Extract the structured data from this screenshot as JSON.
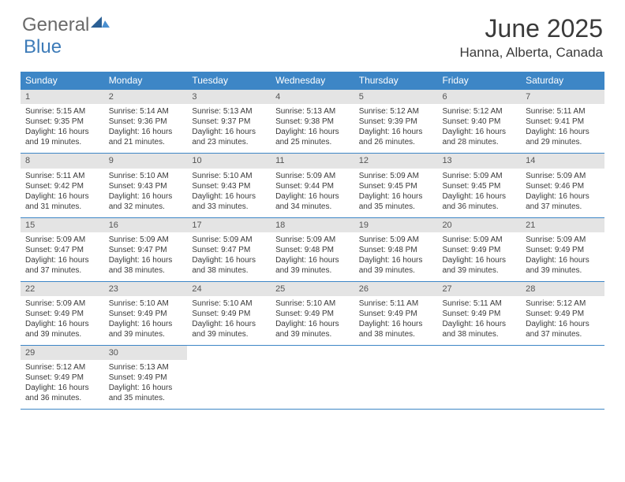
{
  "logo": {
    "general": "General",
    "blue": "Blue"
  },
  "title": "June 2025",
  "location": "Hanna, Alberta, Canada",
  "colors": {
    "header_bg": "#3d86c6",
    "header_text": "#ffffff",
    "daynum_bg": "#e4e4e4",
    "daynum_text": "#555555",
    "body_text": "#3a3a3a",
    "border": "#3d86c6",
    "logo_gray": "#6a6a6a",
    "logo_blue": "#3d7bb8"
  },
  "weekdays": [
    "Sunday",
    "Monday",
    "Tuesday",
    "Wednesday",
    "Thursday",
    "Friday",
    "Saturday"
  ],
  "weeks": [
    [
      {
        "n": "1",
        "sr": "5:15 AM",
        "ss": "9:35 PM",
        "dh": "16",
        "dm": "19"
      },
      {
        "n": "2",
        "sr": "5:14 AM",
        "ss": "9:36 PM",
        "dh": "16",
        "dm": "21"
      },
      {
        "n": "3",
        "sr": "5:13 AM",
        "ss": "9:37 PM",
        "dh": "16",
        "dm": "23"
      },
      {
        "n": "4",
        "sr": "5:13 AM",
        "ss": "9:38 PM",
        "dh": "16",
        "dm": "25"
      },
      {
        "n": "5",
        "sr": "5:12 AM",
        "ss": "9:39 PM",
        "dh": "16",
        "dm": "26"
      },
      {
        "n": "6",
        "sr": "5:12 AM",
        "ss": "9:40 PM",
        "dh": "16",
        "dm": "28"
      },
      {
        "n": "7",
        "sr": "5:11 AM",
        "ss": "9:41 PM",
        "dh": "16",
        "dm": "29"
      }
    ],
    [
      {
        "n": "8",
        "sr": "5:11 AM",
        "ss": "9:42 PM",
        "dh": "16",
        "dm": "31"
      },
      {
        "n": "9",
        "sr": "5:10 AM",
        "ss": "9:43 PM",
        "dh": "16",
        "dm": "32"
      },
      {
        "n": "10",
        "sr": "5:10 AM",
        "ss": "9:43 PM",
        "dh": "16",
        "dm": "33"
      },
      {
        "n": "11",
        "sr": "5:09 AM",
        "ss": "9:44 PM",
        "dh": "16",
        "dm": "34"
      },
      {
        "n": "12",
        "sr": "5:09 AM",
        "ss": "9:45 PM",
        "dh": "16",
        "dm": "35"
      },
      {
        "n": "13",
        "sr": "5:09 AM",
        "ss": "9:45 PM",
        "dh": "16",
        "dm": "36"
      },
      {
        "n": "14",
        "sr": "5:09 AM",
        "ss": "9:46 PM",
        "dh": "16",
        "dm": "37"
      }
    ],
    [
      {
        "n": "15",
        "sr": "5:09 AM",
        "ss": "9:47 PM",
        "dh": "16",
        "dm": "37"
      },
      {
        "n": "16",
        "sr": "5:09 AM",
        "ss": "9:47 PM",
        "dh": "16",
        "dm": "38"
      },
      {
        "n": "17",
        "sr": "5:09 AM",
        "ss": "9:47 PM",
        "dh": "16",
        "dm": "38"
      },
      {
        "n": "18",
        "sr": "5:09 AM",
        "ss": "9:48 PM",
        "dh": "16",
        "dm": "39"
      },
      {
        "n": "19",
        "sr": "5:09 AM",
        "ss": "9:48 PM",
        "dh": "16",
        "dm": "39"
      },
      {
        "n": "20",
        "sr": "5:09 AM",
        "ss": "9:49 PM",
        "dh": "16",
        "dm": "39"
      },
      {
        "n": "21",
        "sr": "5:09 AM",
        "ss": "9:49 PM",
        "dh": "16",
        "dm": "39"
      }
    ],
    [
      {
        "n": "22",
        "sr": "5:09 AM",
        "ss": "9:49 PM",
        "dh": "16",
        "dm": "39"
      },
      {
        "n": "23",
        "sr": "5:10 AM",
        "ss": "9:49 PM",
        "dh": "16",
        "dm": "39"
      },
      {
        "n": "24",
        "sr": "5:10 AM",
        "ss": "9:49 PM",
        "dh": "16",
        "dm": "39"
      },
      {
        "n": "25",
        "sr": "5:10 AM",
        "ss": "9:49 PM",
        "dh": "16",
        "dm": "39"
      },
      {
        "n": "26",
        "sr": "5:11 AM",
        "ss": "9:49 PM",
        "dh": "16",
        "dm": "38"
      },
      {
        "n": "27",
        "sr": "5:11 AM",
        "ss": "9:49 PM",
        "dh": "16",
        "dm": "38"
      },
      {
        "n": "28",
        "sr": "5:12 AM",
        "ss": "9:49 PM",
        "dh": "16",
        "dm": "37"
      }
    ],
    [
      {
        "n": "29",
        "sr": "5:12 AM",
        "ss": "9:49 PM",
        "dh": "16",
        "dm": "36"
      },
      {
        "n": "30",
        "sr": "5:13 AM",
        "ss": "9:49 PM",
        "dh": "16",
        "dm": "35"
      },
      null,
      null,
      null,
      null,
      null
    ]
  ],
  "labels": {
    "sunrise": "Sunrise:",
    "sunset": "Sunset:",
    "daylight": "Daylight:",
    "hours": "hours",
    "and": "and",
    "minutes": "minutes."
  }
}
